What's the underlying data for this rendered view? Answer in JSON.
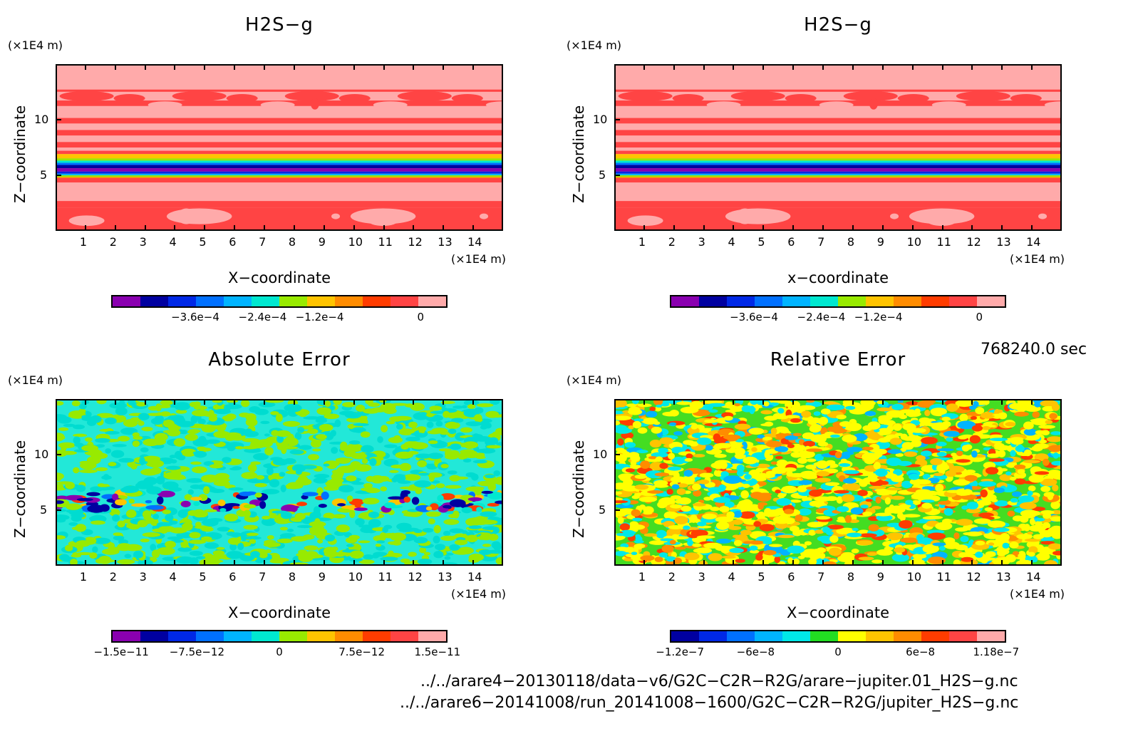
{
  "panels": [
    {
      "title": "H2S−g",
      "unit_y": "(×1E4 m)",
      "unit_x": "(×1E4 m)",
      "xlabel": "X−coordinate",
      "ylabel": "Z−coordinate",
      "colorbar_labels": [
        "−3.6e−4",
        "−2.4e−4",
        "−1.2e−4",
        "0"
      ]
    },
    {
      "title": "H2S−g",
      "unit_y": "(×1E4 m)",
      "unit_x": "(×1E4 m)",
      "xlabel": "x−coordinate",
      "ylabel": "Z−coordinate",
      "colorbar_labels": [
        "−3.6e−4",
        "−2.4e−4",
        "−1.2e−4",
        "0"
      ]
    },
    {
      "title": "Absolute Error",
      "unit_y": "(×1E4 m)",
      "unit_x": "(×1E4 m)",
      "xlabel": "X−coordinate",
      "ylabel": "Z−coordinate",
      "colorbar_labels": [
        "−1.5e−11",
        "−7.5e−12",
        "0",
        "7.5e−12",
        "1.5e−11"
      ]
    },
    {
      "title": "Relative Error",
      "unit_y": "(×1E4 m)",
      "unit_x": "(×1E4 m)",
      "xlabel": "X−coordinate",
      "ylabel": "Z−coordinate",
      "colorbar_labels": [
        "−1.2e−7",
        "−6e−8",
        "0",
        "6e−8",
        "1.18e−7"
      ]
    }
  ],
  "time_label": "768240.0 sec",
  "file_paths": [
    "../../arare4−20130118/data−v6/G2C−C2R−R2G/arare−jupiter.01_H2S−g.nc",
    "../../arare6−20141008/run_20141008−1600/G2C−C2R−R2G/jupiter_H2S−g.nc"
  ],
  "chart_data": [
    {
      "type": "heatmap",
      "title": "H2S−g",
      "xlabel": "X−coordinate",
      "ylabel": "Z−coordinate",
      "x_ticks": [
        1,
        2,
        3,
        4,
        5,
        6,
        7,
        8,
        9,
        10,
        11,
        12,
        13,
        14
      ],
      "y_ticks": [
        5,
        10
      ],
      "xlim": [
        0,
        15
      ],
      "ylim": [
        0,
        15
      ],
      "colorbar_levels": [
        "−3.6e−4",
        "−2.4e−4",
        "−1.2e−4",
        "0"
      ],
      "colors": [
        "#8a00b0",
        "#0000a0",
        "#0028e6",
        "#0070ff",
        "#00b4ff",
        "#00e8d0",
        "#98ea00",
        "#ffc400",
        "#ff8c00",
        "#ff3c00",
        "#ff4444",
        "#ffaaaa"
      ]
    },
    {
      "type": "heatmap",
      "title": "H2S−g",
      "xlabel": "x−coordinate",
      "ylabel": "Z−coordinate",
      "x_ticks": [
        1,
        2,
        3,
        4,
        5,
        6,
        7,
        8,
        9,
        10,
        11,
        12,
        13,
        14
      ],
      "y_ticks": [
        5,
        10
      ],
      "xlim": [
        0,
        15
      ],
      "ylim": [
        0,
        15
      ],
      "colorbar_levels": [
        "−3.6e−4",
        "−2.4e−4",
        "−1.2e−4",
        "0"
      ],
      "colors": [
        "#8a00b0",
        "#0000a0",
        "#0028e6",
        "#0070ff",
        "#00b4ff",
        "#00e8d0",
        "#98ea00",
        "#ffc400",
        "#ff8c00",
        "#ff3c00",
        "#ff4444",
        "#ffaaaa"
      ]
    },
    {
      "type": "heatmap",
      "title": "Absolute Error",
      "xlabel": "X−coordinate",
      "ylabel": "Z−coordinate",
      "x_ticks": [
        1,
        2,
        3,
        4,
        5,
        6,
        7,
        8,
        9,
        10,
        11,
        12,
        13,
        14
      ],
      "y_ticks": [
        5,
        10
      ],
      "xlim": [
        0,
        15
      ],
      "ylim": [
        0,
        15
      ],
      "colorbar_levels": [
        "−1.5e−11",
        "−7.5e−12",
        "0",
        "7.5e−12",
        "1.5e−11"
      ],
      "colors": [
        "#8a00b0",
        "#0000a0",
        "#0028e6",
        "#0070ff",
        "#00b4ff",
        "#00e8d0",
        "#98ea00",
        "#ffc400",
        "#ff8c00",
        "#ff3c00",
        "#ff4444",
        "#ffaaaa"
      ]
    },
    {
      "type": "heatmap",
      "title": "Relative Error",
      "xlabel": "X−coordinate",
      "ylabel": "Z−coordinate",
      "x_ticks": [
        1,
        2,
        3,
        4,
        5,
        6,
        7,
        8,
        9,
        10,
        11,
        12,
        13,
        14
      ],
      "y_ticks": [
        5,
        10
      ],
      "xlim": [
        0,
        15
      ],
      "ylim": [
        0,
        15
      ],
      "colorbar_levels": [
        "−1.2e−7",
        "−6e−8",
        "0",
        "6e−8",
        "1.18e−7"
      ],
      "colors": [
        "#0000a0",
        "#0028e6",
        "#0070ff",
        "#00b4ff",
        "#00e8e8",
        "#22dd22",
        "#ffff00",
        "#ffc400",
        "#ff8c00",
        "#ff3c00",
        "#ff4444",
        "#ffaaaa"
      ]
    }
  ]
}
